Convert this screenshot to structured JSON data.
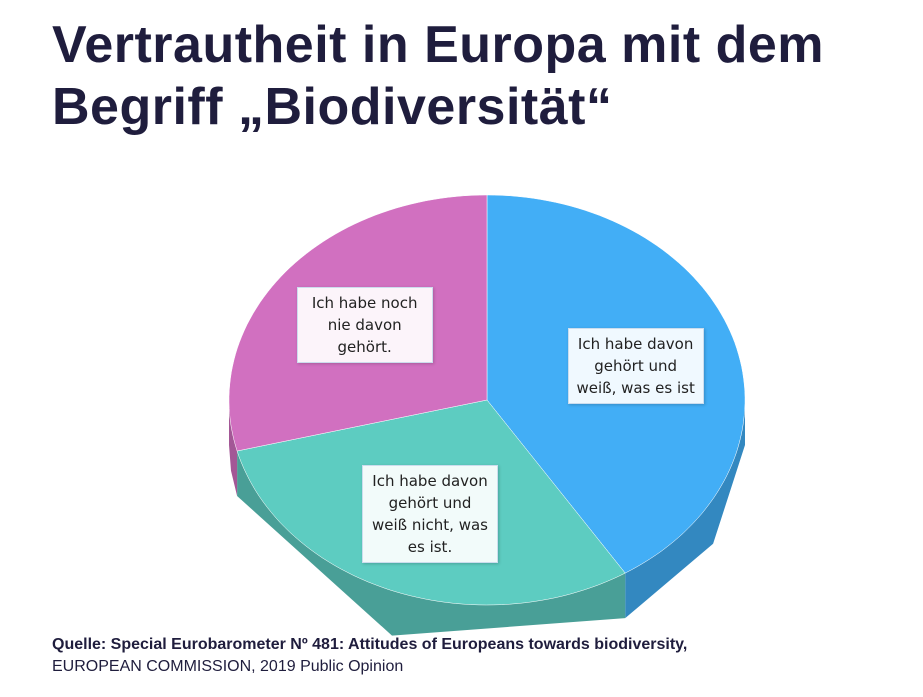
{
  "chart_data": {
    "type": "pie",
    "title": "Vertrautheit in Europa mit dem Begriff „Biodiversität“",
    "categories": [
      "Ich habe davon gehört und weiß, was es ist",
      "Ich habe davon gehört und weiß nicht, was es ist.",
      "Ich habe noch nie davon gehört."
    ],
    "values": [
      41,
      30,
      29
    ],
    "colors": [
      "#42aef6",
      "#5dccc1",
      "#d170c0"
    ],
    "source": "Quelle: Special Eurobarometer Nº 481: Attitudes of Europeans towards biodiversity,",
    "source_detail": "EUROPEAN COMMISSION, 2019 Public Opinion"
  }
}
